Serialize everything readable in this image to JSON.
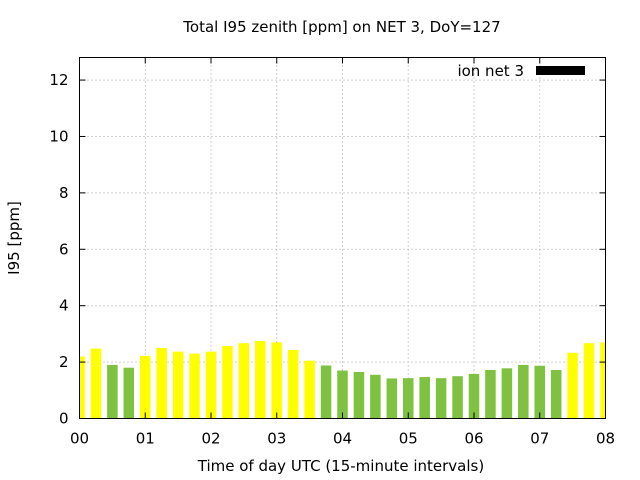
{
  "chart_data": {
    "type": "bar",
    "title": "Total I95 zenith [ppm] on NET 3, DoY=127",
    "xlabel": "Time of day UTC (15-minute intervals)",
    "ylabel": "I95 [ppm]",
    "xlim": [
      0,
      8
    ],
    "ylim": [
      0,
      12.8
    ],
    "x_ticks": [
      0,
      1,
      2,
      3,
      4,
      5,
      6,
      7,
      8
    ],
    "x_tick_labels": [
      "00",
      "01",
      "02",
      "03",
      "04",
      "05",
      "06",
      "07",
      "08"
    ],
    "y_ticks": [
      0,
      2,
      4,
      6,
      8,
      10,
      12
    ],
    "y_tick_labels": [
      "0",
      "2",
      "4",
      "6",
      "8",
      "10",
      "12"
    ],
    "grid": true,
    "legend": {
      "position": "top-right",
      "entries": [
        {
          "label": "ion net 3",
          "color": "#000000"
        }
      ]
    },
    "colors": {
      "yellow": "#ffff00",
      "green": "#7fc241"
    },
    "bar_width_hours": 0.16,
    "series": [
      {
        "x": [
          0.0,
          0.25,
          0.5,
          0.75,
          1.0,
          1.25,
          1.5,
          1.75,
          2.0,
          2.25,
          2.5,
          2.75,
          3.0,
          3.25,
          3.5,
          3.75,
          4.0,
          4.25,
          4.5,
          4.75,
          5.0,
          5.25,
          5.5,
          5.75,
          6.0,
          6.25,
          6.5,
          6.75,
          7.0,
          7.25,
          7.5,
          7.75,
          8.0
        ],
        "values": [
          2.2,
          2.48,
          1.9,
          1.8,
          2.22,
          2.5,
          2.37,
          2.3,
          2.37,
          2.57,
          2.67,
          2.75,
          2.7,
          2.43,
          2.05,
          1.88,
          1.7,
          1.65,
          1.55,
          1.42,
          1.43,
          1.47,
          1.43,
          1.5,
          1.58,
          1.72,
          1.78,
          1.9,
          1.87,
          1.72,
          2.33,
          2.67,
          2.7
        ],
        "colors": [
          "yellow",
          "yellow",
          "green",
          "green",
          "yellow",
          "yellow",
          "yellow",
          "yellow",
          "yellow",
          "yellow",
          "yellow",
          "yellow",
          "yellow",
          "yellow",
          "yellow",
          "green",
          "green",
          "green",
          "green",
          "green",
          "green",
          "green",
          "green",
          "green",
          "green",
          "green",
          "green",
          "green",
          "green",
          "green",
          "yellow",
          "yellow",
          "yellow"
        ]
      }
    ]
  }
}
